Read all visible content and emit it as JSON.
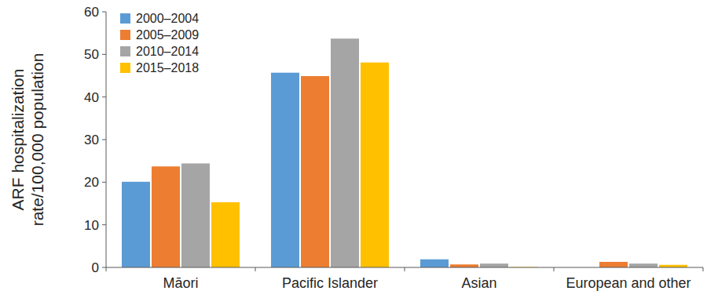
{
  "chart_data": {
    "type": "bar",
    "y_label": [
      "ARF hospitalization",
      "rate/100,000 population"
    ],
    "categories": [
      "Māori",
      "Pacific Islander",
      "Asian",
      "European and other"
    ],
    "series": [
      {
        "name": "2000–2004",
        "color": "#5b9bd5",
        "values": [
          20.1,
          45.7,
          1.9,
          0
        ]
      },
      {
        "name": "2005–2009",
        "color": "#ed7d31",
        "values": [
          23.7,
          44.9,
          0.7,
          1.3
        ]
      },
      {
        "name": "2010–2014",
        "color": "#a5a5a5",
        "values": [
          24.4,
          53.7,
          0.9,
          0.9
        ]
      },
      {
        "name": "2015–2018",
        "color": "#ffc000",
        "values": [
          15.3,
          48.1,
          0.1,
          0.6
        ]
      }
    ],
    "ylim": [
      0,
      60
    ],
    "yticks": [
      0,
      10,
      20,
      30,
      40,
      50,
      60
    ],
    "grid": false,
    "legend": "upper-left"
  }
}
